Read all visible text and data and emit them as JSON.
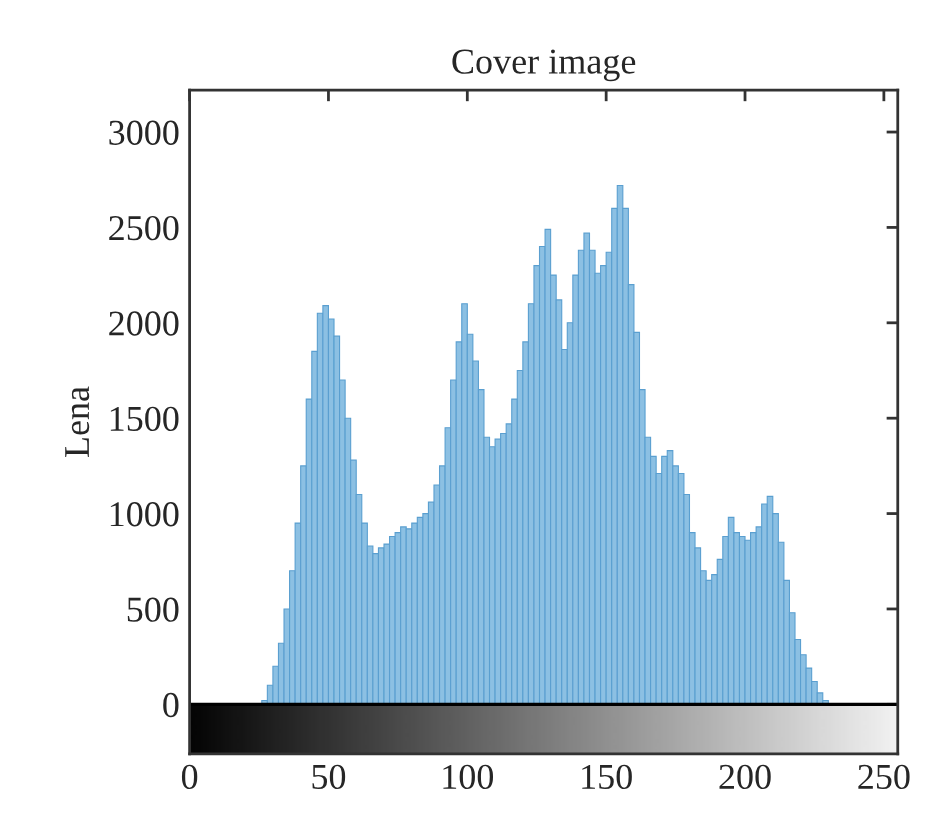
{
  "chart_data": {
    "type": "histogram",
    "title": "Cover image",
    "ylabel": "Lena",
    "bins": [
      26,
      28,
      30,
      32,
      34,
      36,
      38,
      40,
      42,
      44,
      46,
      48,
      50,
      52,
      54,
      56,
      58,
      60,
      62,
      64,
      66,
      68,
      70,
      72,
      74,
      76,
      78,
      80,
      82,
      84,
      86,
      88,
      90,
      92,
      94,
      96,
      98,
      100,
      102,
      104,
      106,
      108,
      110,
      112,
      114,
      116,
      118,
      120,
      122,
      124,
      126,
      128,
      130,
      132,
      134,
      136,
      138,
      140,
      142,
      144,
      146,
      148,
      150,
      152,
      154,
      156,
      158,
      160,
      162,
      164,
      166,
      168,
      170,
      172,
      174,
      176,
      178,
      180,
      182,
      184,
      186,
      188,
      190,
      192,
      194,
      196,
      198,
      200,
      202,
      204,
      206,
      208,
      210,
      212,
      214,
      216,
      218,
      220,
      222,
      224,
      226,
      228,
      230
    ],
    "values": [
      20,
      100,
      200,
      320,
      500,
      700,
      950,
      1250,
      1600,
      1850,
      2050,
      2090,
      2020,
      1930,
      1700,
      1500,
      1280,
      1100,
      950,
      830,
      790,
      820,
      840,
      880,
      900,
      930,
      920,
      950,
      980,
      1000,
      1060,
      1150,
      1250,
      1450,
      1700,
      1900,
      2100,
      1940,
      1800,
      1650,
      1400,
      1350,
      1390,
      1420,
      1470,
      1600,
      1750,
      1900,
      2100,
      2300,
      2400,
      2490,
      2250,
      2120,
      1860,
      2000,
      2250,
      2380,
      2470,
      2380,
      2260,
      2300,
      2370,
      2600,
      2720,
      2600,
      2200,
      1950,
      1650,
      1400,
      1300,
      1210,
      1300,
      1330,
      1250,
      1210,
      1100,
      900,
      820,
      700,
      650,
      680,
      760,
      880,
      980,
      900,
      880,
      860,
      900,
      930,
      1050,
      1090,
      1000,
      850,
      650,
      480,
      340,
      260,
      190,
      120,
      60,
      20
    ],
    "color": "#8cc0e3",
    "xlim": [
      0,
      255
    ],
    "ylim": [
      -260,
      3220
    ],
    "xticks": [
      0,
      50,
      100,
      150,
      200,
      250
    ],
    "yticks": [
      0,
      500,
      1000,
      1500,
      2000,
      2500,
      3000
    ]
  }
}
